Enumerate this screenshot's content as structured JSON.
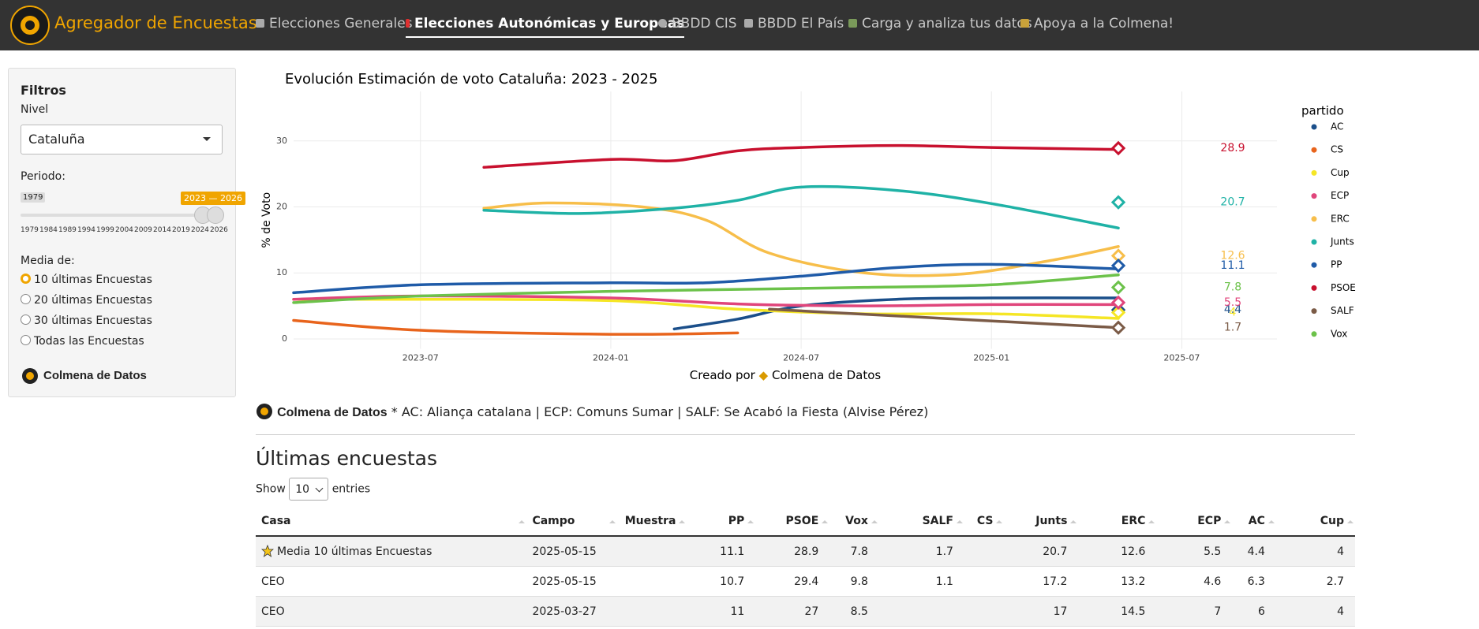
{
  "navbar": {
    "brand": "Agregador de Encuestas",
    "items": [
      "Elecciones Generales",
      "Elecciones Autonómicas y Europeas",
      "BBDD CIS",
      "BBDD El País",
      "Carga y analiza tus datos",
      "Apoya a la Colmena!"
    ]
  },
  "sidebar": {
    "title": "Filtros",
    "nivel_label": "Nivel",
    "nivel": "Cataluña",
    "periodo_label": "Periodo:",
    "slider_min": 1979,
    "slider_range": "2023 — 2026",
    "slider_ticks": [
      1979,
      1984,
      1989,
      1994,
      1999,
      2004,
      2009,
      2014,
      2019,
      2024,
      2026
    ],
    "media_label": "Media de:",
    "media_options": [
      "10 últimas Encuestas",
      "20 últimas Encuestas",
      "30 últimas Encuestas",
      "Todas las Encuestas"
    ],
    "brand": "Colmena de Datos"
  },
  "chart_data": {
    "type": "line",
    "title": "Evolución Estimación de voto Cataluña: 2023 - 2025",
    "ylabel": "% de Voto",
    "caption_prefix": "Creado por",
    "caption_brand": "Colmena de Datos",
    "legend_title": "partido",
    "xlim": [
      "2023-03",
      "2025-10"
    ],
    "xticks": [
      "2023-07",
      "2024-01",
      "2024-07",
      "2025-01",
      "2025-07"
    ],
    "ylim": [
      -1.5,
      37.5
    ],
    "yticks": [
      0,
      10,
      20,
      30
    ],
    "grid": true,
    "last_x": "2025-05",
    "series": [
      {
        "name": "AC",
        "color": "#1b4f8a",
        "x": [
          "2024-03",
          "2024-05",
          "2024-07",
          "2024-10",
          "2025-01",
          "2025-05"
        ],
        "values": [
          1.5,
          3,
          5,
          6,
          6.2,
          6.2
        ],
        "last": 4.4
      },
      {
        "name": "CS",
        "color": "#e8641c",
        "x": [
          "2023-03",
          "2023-07",
          "2024-01",
          "2024-05"
        ],
        "values": [
          2.8,
          1.3,
          0.7,
          0.9
        ]
      },
      {
        "name": "Cup",
        "color": "#f5e625",
        "x": [
          "2023-03",
          "2023-07",
          "2024-01",
          "2024-05",
          "2024-09",
          "2025-01",
          "2025-05"
        ],
        "values": [
          6,
          6,
          5.8,
          4.5,
          3.8,
          3.8,
          3.1
        ],
        "last": 4
      },
      {
        "name": "ECP",
        "color": "#e0457b",
        "x": [
          "2023-03",
          "2023-07",
          "2024-01",
          "2024-05",
          "2024-09",
          "2025-01",
          "2025-05"
        ],
        "values": [
          6,
          6.5,
          6.2,
          5.3,
          5,
          5.2,
          5.2
        ],
        "last": 5.5
      },
      {
        "name": "ERC",
        "color": "#f7be4a",
        "x": [
          "2023-09",
          "2023-11",
          "2024-02",
          "2024-04",
          "2024-06",
          "2024-09",
          "2024-12",
          "2025-03",
          "2025-05"
        ],
        "values": [
          19.8,
          20.6,
          20,
          18,
          13,
          10,
          9.8,
          12,
          14
        ],
        "last": 12.6
      },
      {
        "name": "Junts",
        "color": "#1fb2a6",
        "x": [
          "2023-09",
          "2023-12",
          "2024-03",
          "2024-05",
          "2024-07",
          "2024-10",
          "2025-01",
          "2025-05"
        ],
        "values": [
          19.5,
          19,
          19.8,
          21,
          23,
          22.5,
          20.5,
          16.8
        ],
        "last": 20.7
      },
      {
        "name": "PP",
        "color": "#1f5ba8",
        "x": [
          "2023-03",
          "2023-07",
          "2024-01",
          "2024-04",
          "2024-07",
          "2024-10",
          "2025-01",
          "2025-05"
        ],
        "values": [
          7,
          8.2,
          8.5,
          8.5,
          9.5,
          10.8,
          11.3,
          10.6
        ],
        "last": 11.1
      },
      {
        "name": "PSOE",
        "color": "#c8102e",
        "x": [
          "2023-09",
          "2024-01",
          "2024-03",
          "2024-05",
          "2024-07",
          "2024-10",
          "2025-01",
          "2025-05"
        ],
        "values": [
          26,
          27.2,
          27,
          28.5,
          29,
          29.3,
          29,
          28.7
        ],
        "last": 28.9
      },
      {
        "name": "SALF",
        "color": "#7b5b47",
        "x": [
          "2024-06",
          "2025-05"
        ],
        "values": [
          4.5,
          1.7
        ],
        "last": 1.7
      },
      {
        "name": "Vox",
        "color": "#6cc24a",
        "x": [
          "2023-03",
          "2023-07",
          "2024-01",
          "2024-05",
          "2024-09",
          "2025-01",
          "2025-05"
        ],
        "values": [
          5.5,
          6.5,
          7.2,
          7.5,
          7.8,
          8.2,
          9.7
        ],
        "last": 7.8
      }
    ]
  },
  "note": {
    "brand": "Colmena de Datos",
    "text": "* AC: Aliança catalana | ECP: Comuns Sumar | SALF: Se Acabó la Fiesta (Alvise Pérez)"
  },
  "table": {
    "title": "Últimas encuestas",
    "show_label": "Show",
    "length": 10,
    "entries_label": "entries",
    "columns": [
      "Casa",
      "Campo",
      "Muestra",
      "PP",
      "PSOE",
      "Vox",
      "SALF",
      "CS",
      "Junts",
      "ERC",
      "ECP",
      "AC",
      "Cup"
    ],
    "rows": [
      [
        "Media 10 últimas Encuestas",
        "2025-05-15",
        null,
        11.1,
        28.9,
        7.8,
        1.7,
        null,
        20.7,
        12.6,
        5.5,
        4.4,
        4
      ],
      [
        "CEO",
        "2025-05-15",
        null,
        10.7,
        29.4,
        9.8,
        1.1,
        null,
        17.2,
        13.2,
        4.6,
        6.3,
        2.7
      ],
      [
        "CEO",
        "2025-03-27",
        null,
        11,
        27,
        8.5,
        null,
        null,
        17,
        14.5,
        7,
        6,
        4
      ]
    ]
  }
}
